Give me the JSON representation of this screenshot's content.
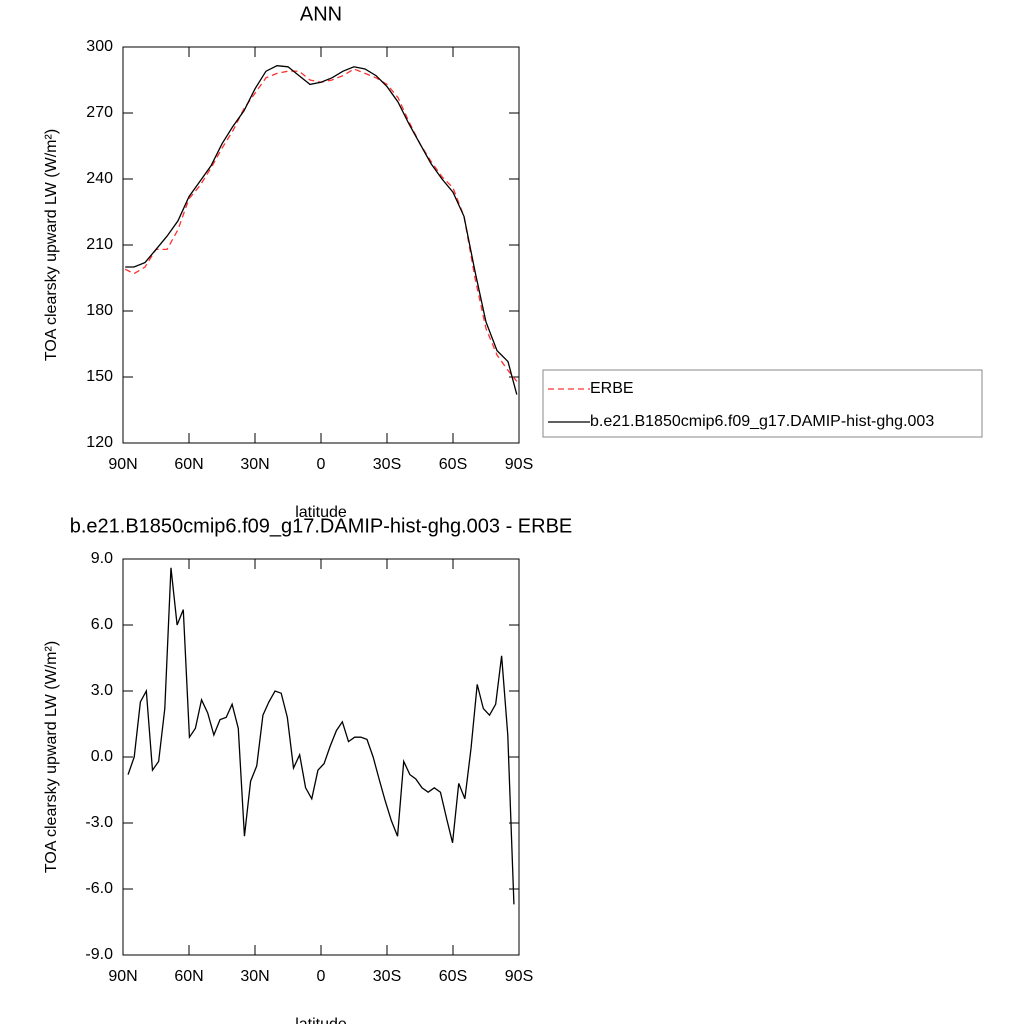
{
  "chart_data": [
    {
      "type": "line",
      "title": "ANN",
      "x_label": "latitude",
      "y_label": "TOA clearsky upward LW (W/m²)",
      "x": [
        89,
        85,
        80,
        75,
        70,
        65,
        60,
        55,
        50,
        45,
        40,
        35,
        30,
        25,
        20,
        15,
        10,
        5,
        0,
        -5,
        -10,
        -15,
        -20,
        -25,
        -30,
        -35,
        -40,
        -45,
        -50,
        -55,
        -60,
        -65,
        -70,
        -75,
        -80,
        -85,
        -89
      ],
      "series": [
        {
          "name": "ERBE",
          "color": "#ff3030",
          "line_style": "dashed",
          "values": [
            199,
            197,
            200,
            208,
            208,
            217,
            231,
            237,
            245,
            254,
            262,
            272,
            279,
            286,
            288,
            289,
            289,
            285,
            284,
            285,
            287,
            290,
            288,
            286,
            283,
            277,
            266,
            256,
            248,
            241,
            236,
            223,
            195,
            172,
            160,
            153,
            148
          ]
        },
        {
          "name": "b.e21.B1850cmip6.f09_g17.DAMIP-hist-ghg.003",
          "color": "#000000",
          "line_style": "solid",
          "values": [
            200,
            200,
            202,
            208,
            214,
            221,
            232,
            239,
            246,
            256,
            264,
            271,
            281,
            289,
            291.5,
            291,
            287,
            283,
            284,
            286,
            289,
            291,
            290,
            287,
            282,
            275,
            265,
            256,
            247,
            240,
            234,
            223,
            198,
            175,
            162,
            157,
            142
          ]
        }
      ],
      "xlim": [
        90,
        -90
      ],
      "xticks": [
        {
          "value": 90,
          "label": "90N"
        },
        {
          "value": 60,
          "label": "60N"
        },
        {
          "value": 30,
          "label": "30N"
        },
        0,
        {
          "value": -30,
          "label": "30S"
        },
        {
          "value": -60,
          "label": "60S"
        },
        {
          "value": -90,
          "label": "90S"
        }
      ],
      "ylim": [
        120,
        300
      ],
      "yticks": [
        120,
        150,
        180,
        210,
        240,
        270,
        300
      ],
      "legend": "right"
    },
    {
      "type": "line",
      "title": "b.e21.B1850cmip6.f09_g17.DAMIP-hist-ghg.003 - ERBE",
      "x_label": "latitude",
      "y_label": "TOA clearsky upward LW (W/m²)",
      "x": [
        87.7,
        84.9,
        82.1,
        79.4,
        76.6,
        73.8,
        71.0,
        68.2,
        65.4,
        62.6,
        59.8,
        57.1,
        54.3,
        51.5,
        48.7,
        45.9,
        43.1,
        40.4,
        37.6,
        34.8,
        32.0,
        29.2,
        26.4,
        23.7,
        20.9,
        18.1,
        15.3,
        12.5,
        9.7,
        7.0,
        4.2,
        1.4,
        -1.4,
        -4.2,
        -7.0,
        -9.7,
        -12.5,
        -15.3,
        -18.1,
        -20.9,
        -23.7,
        -26.4,
        -29.2,
        -32.0,
        -34.8,
        -37.6,
        -40.4,
        -43.1,
        -45.9,
        -48.7,
        -51.5,
        -54.3,
        -57.1,
        -59.8,
        -62.6,
        -65.4,
        -68.2,
        -71.0,
        -73.8,
        -76.6,
        -79.4,
        -82.1,
        -84.9,
        -87.7
      ],
      "values": [
        -0.8,
        0.0,
        2.5,
        3.0,
        -0.6,
        -0.2,
        2.2,
        8.6,
        6.0,
        6.7,
        0.9,
        1.3,
        2.6,
        2.0,
        1.0,
        1.7,
        1.8,
        2.4,
        1.3,
        -3.6,
        -1.1,
        -0.4,
        1.9,
        2.5,
        3.0,
        2.9,
        1.8,
        -0.5,
        0.1,
        -1.4,
        -1.9,
        -0.6,
        -0.3,
        0.5,
        1.2,
        1.6,
        0.7,
        0.9,
        0.9,
        0.8,
        0.0,
        -1.0,
        -2.0,
        -2.9,
        -3.6,
        -0.2,
        -0.8,
        -1.0,
        -1.4,
        -1.6,
        -1.4,
        -1.6,
        -2.8,
        -3.9,
        -1.2,
        -1.9,
        0.4,
        3.3,
        2.2,
        1.9,
        2.4,
        4.6,
        1.0,
        -6.7
      ],
      "color": "#000000",
      "xlim": [
        90,
        -90
      ],
      "xticks": [
        {
          "value": 90,
          "label": "90N"
        },
        {
          "value": 60,
          "label": "60N"
        },
        {
          "value": 30,
          "label": "30N"
        },
        0,
        {
          "value": -30,
          "label": "30S"
        },
        {
          "value": -60,
          "label": "60S"
        },
        {
          "value": -90,
          "label": "90S"
        }
      ],
      "ylim": [
        -9,
        9
      ],
      "yticks": [
        {
          "value": -9,
          "label": "-9.0"
        },
        {
          "value": -6,
          "label": "-6.0"
        },
        {
          "value": -3,
          "label": "-3.0"
        },
        {
          "value": 0,
          "label": "0.0"
        },
        {
          "value": 3,
          "label": "3.0"
        },
        {
          "value": 6,
          "label": "6.0"
        },
        {
          "value": 9,
          "label": "9.0"
        }
      ]
    }
  ]
}
